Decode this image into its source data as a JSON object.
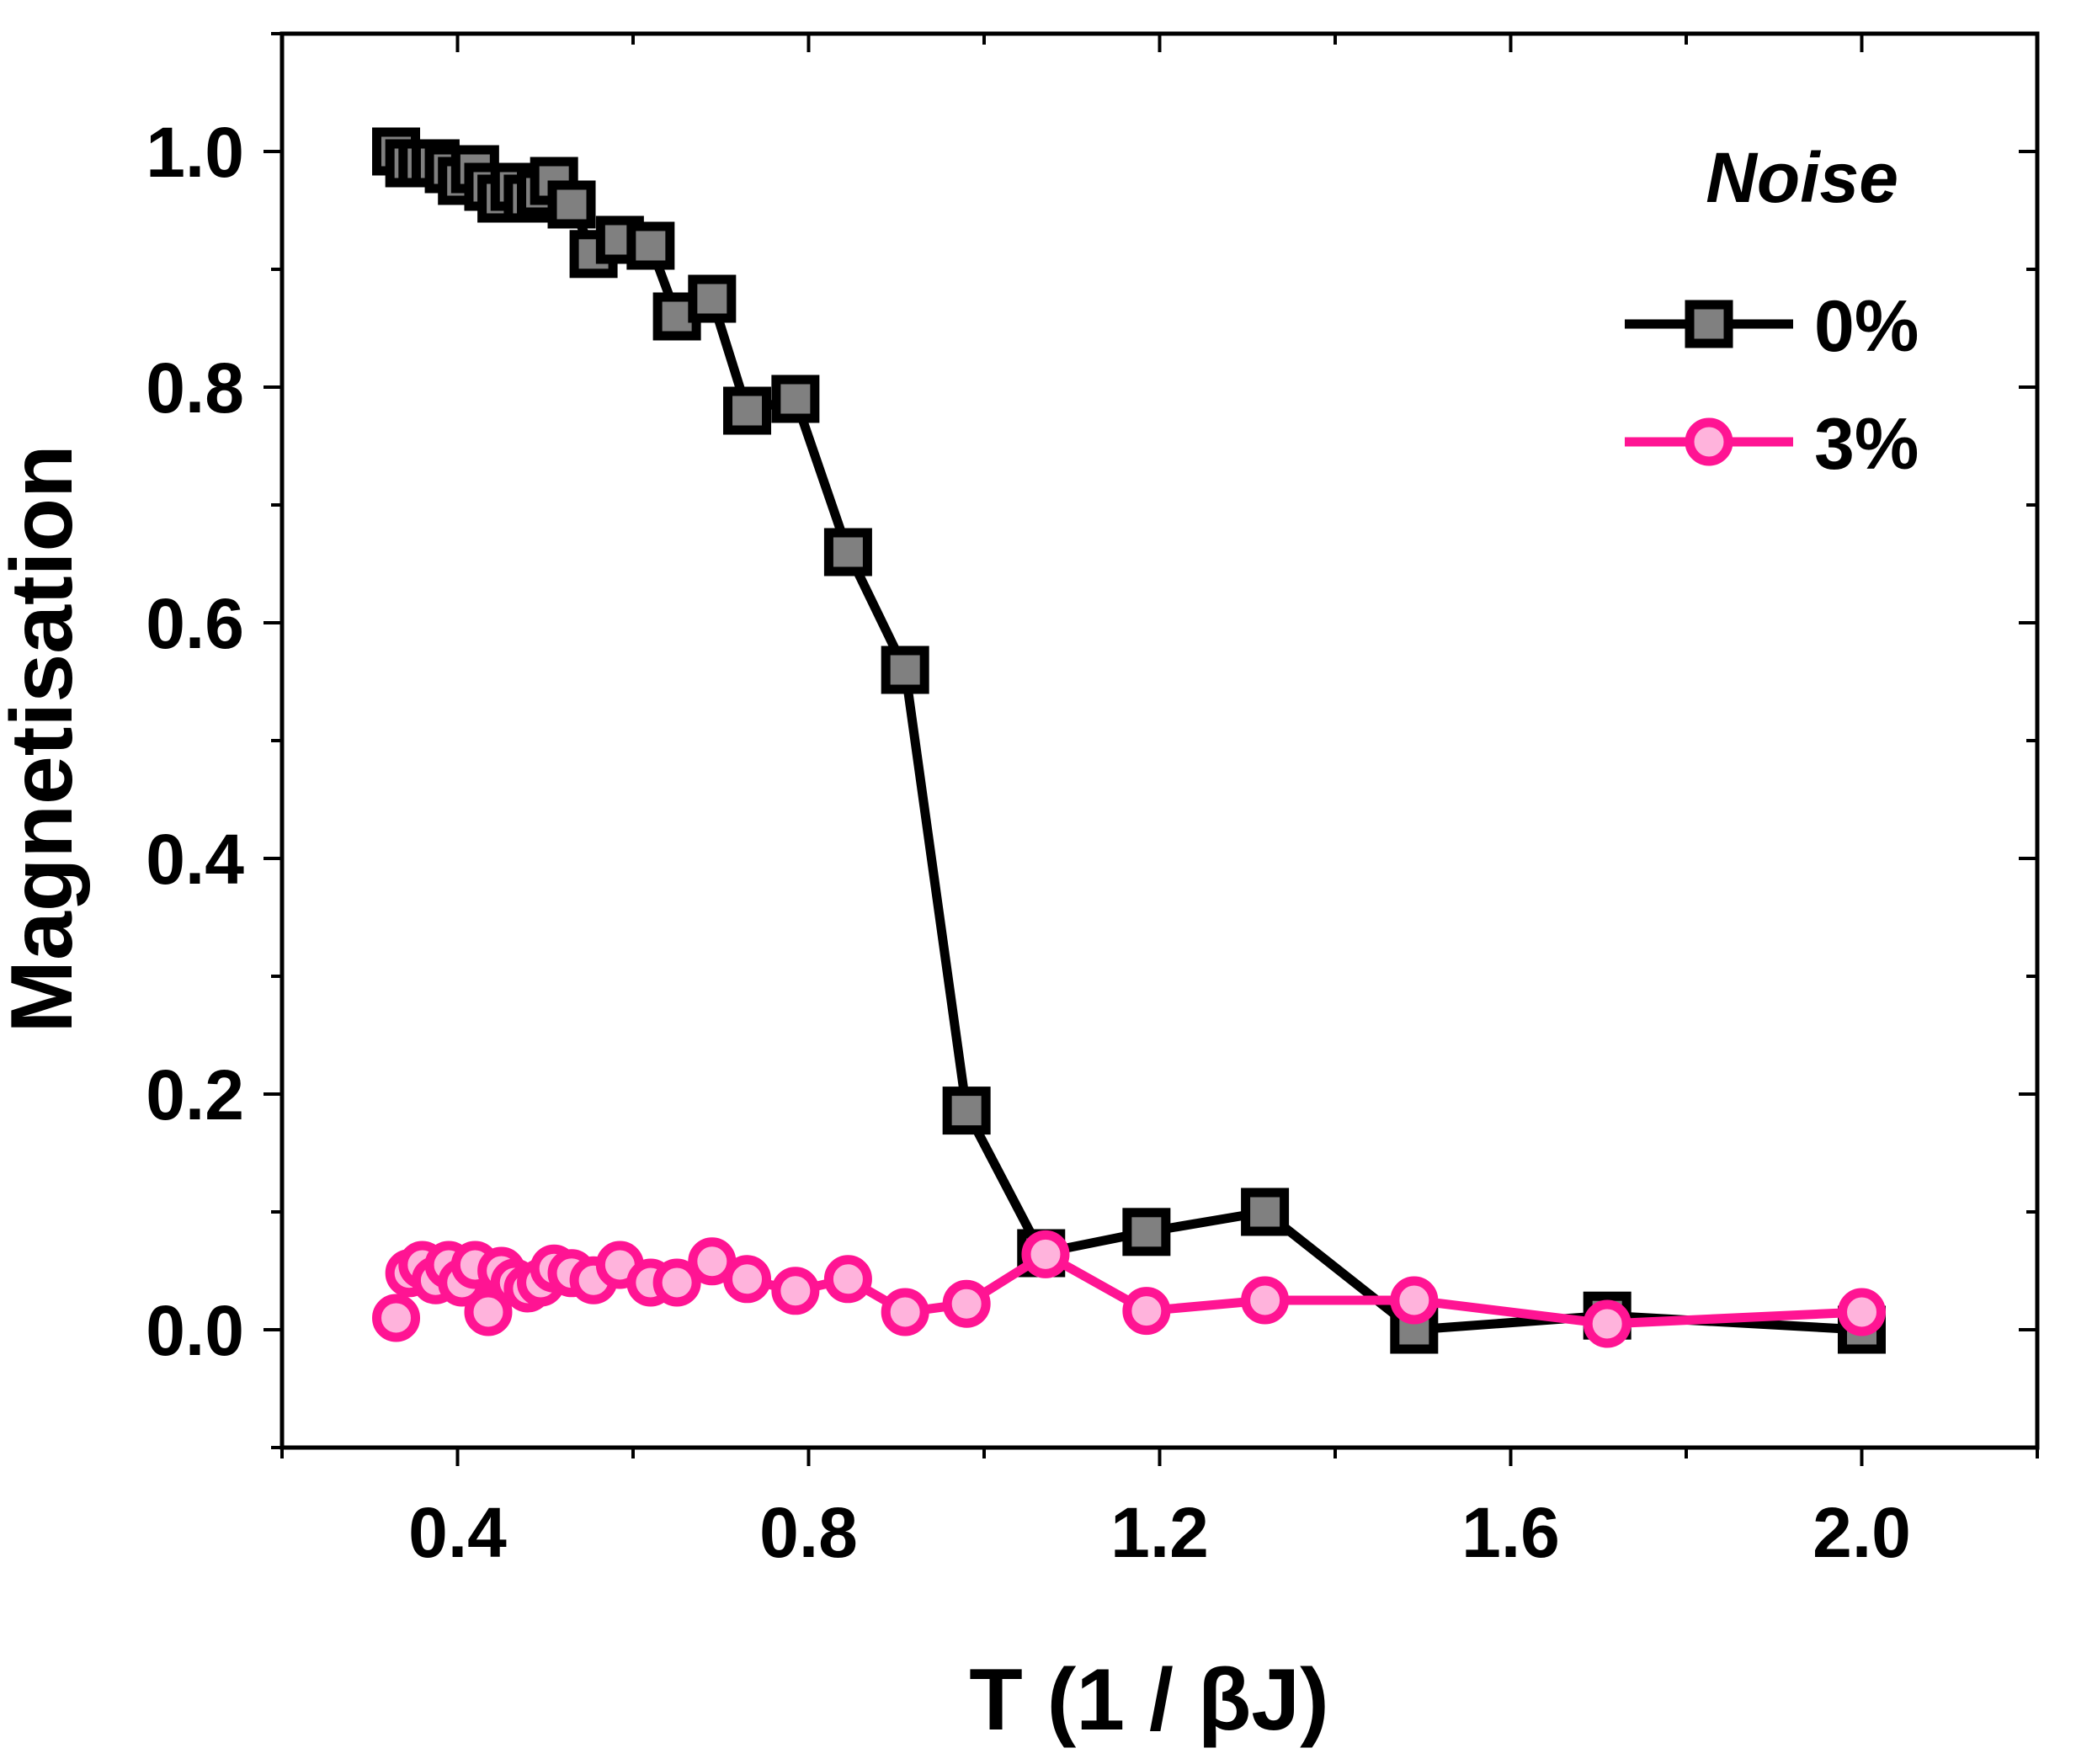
{
  "chart_data": {
    "type": "line",
    "title": "",
    "xlabel": "T (1 / βJ)",
    "ylabel": "Magnetisation",
    "xlim": [
      0.2,
      2.2
    ],
    "ylim": [
      -0.1,
      1.1
    ],
    "x_ticks": [
      0.4,
      0.8,
      1.2,
      1.6,
      2.0
    ],
    "x_tick_labels": [
      "0.4",
      "0.8",
      "1.2",
      "1.6",
      "2.0"
    ],
    "x_minor_ticks": [
      0.2,
      0.6,
      1.0,
      1.4,
      1.8,
      2.2
    ],
    "y_ticks": [
      0.0,
      0.2,
      0.4,
      0.6,
      0.8,
      1.0
    ],
    "y_tick_labels": [
      "0.0",
      "0.2",
      "0.4",
      "0.6",
      "0.8",
      "1.0"
    ],
    "y_minor_ticks": [
      -0.1,
      0.1,
      0.3,
      0.5,
      0.7,
      0.9,
      1.1
    ],
    "grid": false,
    "legend_title": "Noise",
    "legend_position": "top-right",
    "series": [
      {
        "name": "0%",
        "marker": "square",
        "line_color": "#000000",
        "marker_fill": "#808080",
        "marker_edge": "#000000",
        "x": [
          0.33,
          0.345,
          0.36,
          0.375,
          0.39,
          0.405,
          0.42,
          0.435,
          0.45,
          0.465,
          0.48,
          0.495,
          0.51,
          0.53,
          0.555,
          0.585,
          0.62,
          0.65,
          0.69,
          0.73,
          0.785,
          0.845,
          0.91,
          0.98,
          1.065,
          1.185,
          1.32,
          1.49,
          1.71,
          2.0
        ],
        "y": [
          1.0,
          0.99,
          0.99,
          0.99,
          0.985,
          0.975,
          0.985,
          0.97,
          0.96,
          0.97,
          0.96,
          0.965,
          0.975,
          0.955,
          0.913,
          0.925,
          0.92,
          0.86,
          0.875,
          0.78,
          0.79,
          0.66,
          0.56,
          0.186,
          0.065,
          0.083,
          0.1,
          0.0,
          0.012,
          0.0
        ]
      },
      {
        "name": "3%",
        "marker": "circle",
        "line_color": "#ff1493",
        "marker_fill": "#ffb3dc",
        "marker_edge": "#ff1493",
        "x": [
          0.33,
          0.345,
          0.36,
          0.375,
          0.39,
          0.405,
          0.42,
          0.435,
          0.45,
          0.465,
          0.48,
          0.495,
          0.51,
          0.53,
          0.555,
          0.585,
          0.62,
          0.65,
          0.69,
          0.73,
          0.785,
          0.845,
          0.91,
          0.98,
          1.07,
          1.185,
          1.32,
          1.49,
          1.71,
          2.0
        ],
        "y": [
          0.01,
          0.048,
          0.055,
          0.042,
          0.055,
          0.04,
          0.055,
          0.015,
          0.05,
          0.04,
          0.035,
          0.04,
          0.052,
          0.048,
          0.042,
          0.055,
          0.04,
          0.04,
          0.058,
          0.043,
          0.033,
          0.043,
          0.015,
          0.022,
          0.064,
          0.016,
          0.025,
          0.025,
          0.005,
          0.015
        ]
      }
    ]
  }
}
